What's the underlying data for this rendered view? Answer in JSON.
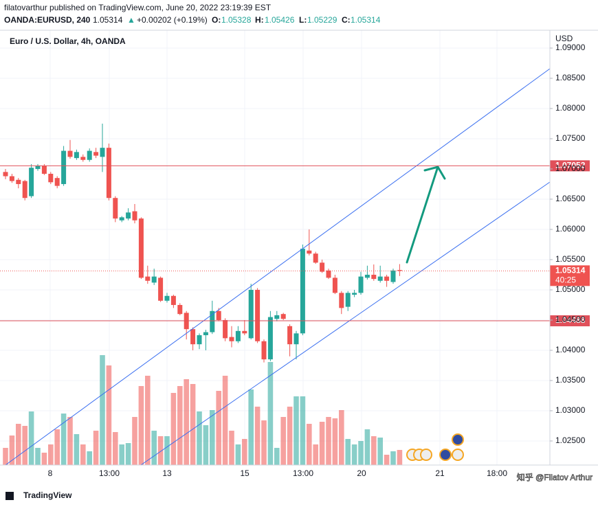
{
  "header": {
    "byline": "filatovarthur published on TradingView.com, June 20, 2022 23:19:39 EST",
    "symbol": "OANDA:EURUSD, 240",
    "last": "1.05314",
    "arrow": "▲",
    "change": "+0.00202 (+0.19%)",
    "o_label": "O:",
    "o": "1.05328",
    "h_label": "H:",
    "h": "1.05426",
    "l_label": "L:",
    "l": "1.05229",
    "c_label": "C:",
    "c": "1.05314"
  },
  "chart_data": {
    "type": "candlestick",
    "title": "Euro / U.S. Dollar, 4h, OANDA",
    "currency": "USD",
    "up_color": "#26a69a",
    "down_color": "#ef5350",
    "ylim": [
      1.02102,
      1.09295
    ],
    "yticks": [
      {
        "value": 1.025,
        "label": "1.02500"
      },
      {
        "value": 1.03,
        "label": "1.03000"
      },
      {
        "value": 1.035,
        "label": "1.03500"
      },
      {
        "value": 1.04,
        "label": "1.04000"
      },
      {
        "value": 1.045,
        "label": "1.04500"
      },
      {
        "value": 1.05,
        "label": "1.05000"
      },
      {
        "value": 1.055,
        "label": "1.05500"
      },
      {
        "value": 1.06,
        "label": "1.06000"
      },
      {
        "value": 1.065,
        "label": "1.06500"
      },
      {
        "value": 1.07,
        "label": "1.07000"
      },
      {
        "value": 1.075,
        "label": "1.07500"
      },
      {
        "value": 1.08,
        "label": "1.08000"
      },
      {
        "value": 1.085,
        "label": "1.08500"
      },
      {
        "value": 1.09,
        "label": "1.09000"
      }
    ],
    "x_labels": [
      "8",
      "13:00",
      "13",
      "15",
      "13:00",
      "20",
      "21",
      "18:00"
    ],
    "levels": [
      1.07052,
      1.04488
    ],
    "current_price": 1.05314,
    "countdown": "40:25",
    "open": [
      1.0695,
      1.0688,
      1.0682,
      1.068,
      1.0655,
      1.07,
      1.0705,
      1.0692,
      1.0685,
      1.0675,
      1.073,
      1.0718,
      1.072,
      1.0715,
      1.0728,
      1.072,
      1.0735,
      1.0652,
      1.0615,
      1.0618,
      1.063,
      1.0618,
      1.0522,
      1.0512,
      1.052,
      1.0482,
      1.049,
      1.0475,
      1.0462,
      1.0435,
      1.041,
      1.0425,
      1.043,
      1.0465,
      1.045,
      1.0422,
      1.0415,
      1.0432,
      1.042,
      1.05,
      1.0415,
      1.0385,
      1.0452,
      1.046,
      1.044,
      1.041,
      1.0428,
      1.0565,
      1.056,
      1.0545,
      1.0532,
      1.052,
      1.0495,
      1.0472,
      1.0492,
      1.0495,
      1.052,
      1.0525,
      1.0515,
      1.0522,
      1.0513,
      1.05328
    ],
    "high": [
      1.07,
      1.0692,
      1.0685,
      1.0682,
      1.0708,
      1.0708,
      1.0708,
      1.0695,
      1.0688,
      1.0738,
      1.0748,
      1.0732,
      1.0724,
      1.0734,
      1.0735,
      1.0775,
      1.0742,
      1.0655,
      1.0622,
      1.0635,
      1.0642,
      1.062,
      1.054,
      1.0535,
      1.0522,
      1.0495,
      1.0492,
      1.0478,
      1.0465,
      1.0438,
      1.0428,
      1.0434,
      1.0482,
      1.047,
      1.0453,
      1.044,
      1.044,
      1.045,
      1.051,
      1.0503,
      1.0418,
      1.0465,
      1.0465,
      1.0462,
      1.0443,
      1.0432,
      1.0575,
      1.06,
      1.0563,
      1.055,
      1.0535,
      1.0525,
      1.0498,
      1.0498,
      1.05,
      1.053,
      1.054,
      1.0542,
      1.054,
      1.0525,
      1.0535,
      1.05426
    ],
    "low": [
      1.0683,
      1.0677,
      1.0668,
      1.0648,
      1.0652,
      1.0697,
      1.069,
      1.0675,
      1.0668,
      1.0672,
      1.0717,
      1.0715,
      1.0712,
      1.0712,
      1.0718,
      1.0695,
      1.0648,
      1.0612,
      1.0612,
      1.0615,
      1.061,
      1.0518,
      1.051,
      1.0508,
      1.048,
      1.0479,
      1.047,
      1.0458,
      1.0418,
      1.04,
      1.0402,
      1.04,
      1.0427,
      1.0448,
      1.0415,
      1.0405,
      1.0412,
      1.0425,
      1.0418,
      1.0412,
      1.038,
      1.0382,
      1.0448,
      1.045,
      1.039,
      1.0385,
      1.0425,
      1.0557,
      1.0543,
      1.0528,
      1.0518,
      1.0493,
      1.046,
      1.0465,
      1.0488,
      1.0492,
      1.0517,
      1.0515,
      1.0512,
      1.0505,
      1.051,
      1.05229
    ],
    "close": [
      1.0688,
      1.068,
      1.0675,
      1.0652,
      1.0702,
      1.0705,
      1.0692,
      1.0678,
      1.0672,
      1.073,
      1.072,
      1.0728,
      1.0715,
      1.073,
      1.0722,
      1.0735,
      1.0652,
      1.0618,
      1.062,
      1.0628,
      1.0615,
      1.052,
      1.0515,
      1.0522,
      1.0482,
      1.049,
      1.0475,
      1.046,
      1.0435,
      1.041,
      1.0425,
      1.043,
      1.0465,
      1.045,
      1.042,
      1.0415,
      1.0432,
      1.0428,
      1.05,
      1.0415,
      1.0385,
      1.0455,
      1.0458,
      1.0452,
      1.041,
      1.0428,
      1.0568,
      1.056,
      1.0545,
      1.053,
      1.052,
      1.0495,
      1.047,
      1.0495,
      1.0495,
      1.0522,
      1.0525,
      1.0518,
      1.0522,
      1.0515,
      1.0532,
      1.05314
    ],
    "volume": [
      25,
      43,
      60,
      57,
      78,
      25,
      18,
      30,
      52,
      75,
      70,
      45,
      30,
      20,
      50,
      160,
      145,
      48,
      30,
      32,
      70,
      115,
      130,
      50,
      42,
      42,
      105,
      115,
      125,
      118,
      78,
      58,
      80,
      108,
      130,
      50,
      30,
      38,
      110,
      85,
      65,
      150,
      25,
      70,
      85,
      100,
      100,
      60,
      30,
      63,
      70,
      68,
      80,
      38,
      30,
      35,
      52,
      42,
      40,
      15,
      20,
      22
    ]
  },
  "footer": {
    "logo": "TradingView",
    "watermark": "知乎 @Filatov Arthur"
  }
}
